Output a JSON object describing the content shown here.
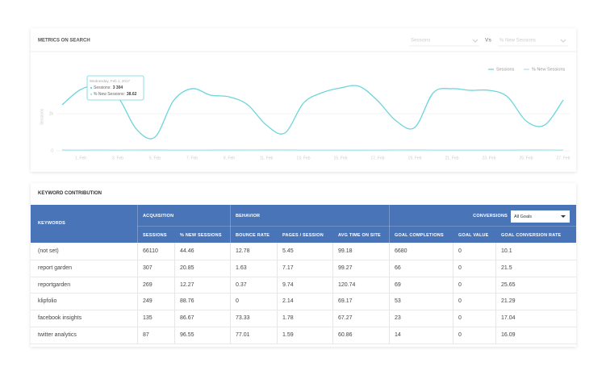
{
  "chart_data": {
    "type": "line",
    "title": "METRICS ON SEARCH",
    "y_label": "Sessions",
    "controls": {
      "metric_a": "Sessions",
      "vs": "Vs",
      "metric_b": "% New Sessions"
    },
    "categories": [
      null,
      "1. Feb",
      null,
      "3. Feb",
      null,
      "5. Feb",
      null,
      "7. Feb",
      null,
      "9. Feb",
      null,
      "11. Feb",
      null,
      "13. Feb",
      null,
      "15. Feb",
      null,
      "17. Feb",
      null,
      "19. Feb",
      null,
      "21. Feb",
      null,
      "23. Feb",
      null,
      "25. Feb",
      null,
      "27. Feb"
    ],
    "series": [
      {
        "name": "Sessions",
        "color": "#6cd5dc",
        "values": [
          2480,
          3304,
          3500,
          2910,
          1170,
          740,
          2700,
          3350,
          3000,
          2910,
          2480,
          1390,
          960,
          2570,
          3130,
          3390,
          3480,
          2700,
          1610,
          1260,
          3130,
          3350,
          3260,
          3260,
          2910,
          1610,
          1390,
          2740
        ]
      },
      {
        "name": "% New Sessions",
        "color": "#a6e6ea",
        "values": [
          40.1,
          38.62,
          41.2,
          39.5,
          44.3,
          46.0,
          37.8,
          36.9,
          39.9,
          40.7,
          42.1,
          45.3,
          47.2,
          38.4,
          37.2,
          36.5,
          36.1,
          39.0,
          43.8,
          46.5,
          37.6,
          36.8,
          37.4,
          38.0,
          39.2,
          44.1,
          45.0,
          38.8
        ]
      }
    ],
    "ylim": [
      0,
      4000
    ],
    "yticks": [
      0,
      {
        "value": 2000,
        "label": "2k"
      }
    ],
    "legend": "top-right",
    "tooltip": {
      "date": "Wednesday, Feb 1, 2017",
      "items": [
        {
          "label": "Sessions:",
          "value": "3 304"
        },
        {
          "label": "% New Sessions:",
          "value": "38.62"
        }
      ]
    }
  },
  "table": {
    "title": "KEYWORD CONTRIBUTION",
    "keyword_header": "KEYWORDS",
    "groups": [
      {
        "label": "ACQUISITION",
        "columns": [
          "SESSIONS",
          "% NEW SESSIONS"
        ]
      },
      {
        "label": "BEHAVIOR",
        "columns": [
          "BOUNCE RATE",
          "PAGES / SESSION",
          "AVG TIME ON SITE"
        ]
      },
      {
        "label": "CONVERSIONS",
        "columns": [
          "GOAL COMPLETIONS",
          "GOAL VALUE",
          "GOAL CONVERSION RATE"
        ]
      }
    ],
    "goal_filter": "All Goals",
    "rows": [
      [
        "(not set)",
        "66110",
        "44.46",
        "12.78",
        "5.45",
        "99.18",
        "6680",
        "0",
        "10.1"
      ],
      [
        "report garden",
        "307",
        "20.85",
        "1.63",
        "7.17",
        "99.27",
        "66",
        "0",
        "21.5"
      ],
      [
        "reportgarden",
        "269",
        "12.27",
        "0.37",
        "9.74",
        "120.74",
        "69",
        "0",
        "25.65"
      ],
      [
        "klipfolio",
        "249",
        "88.76",
        "0",
        "2.14",
        "69.17",
        "53",
        "0",
        "21.29"
      ],
      [
        "facebook insights",
        "135",
        "86.67",
        "73.33",
        "1.78",
        "67.27",
        "23",
        "0",
        "17.04"
      ],
      [
        "twitter analytics",
        "87",
        "96.55",
        "77.01",
        "1.59",
        "60.86",
        "14",
        "0",
        "16.09"
      ]
    ]
  }
}
